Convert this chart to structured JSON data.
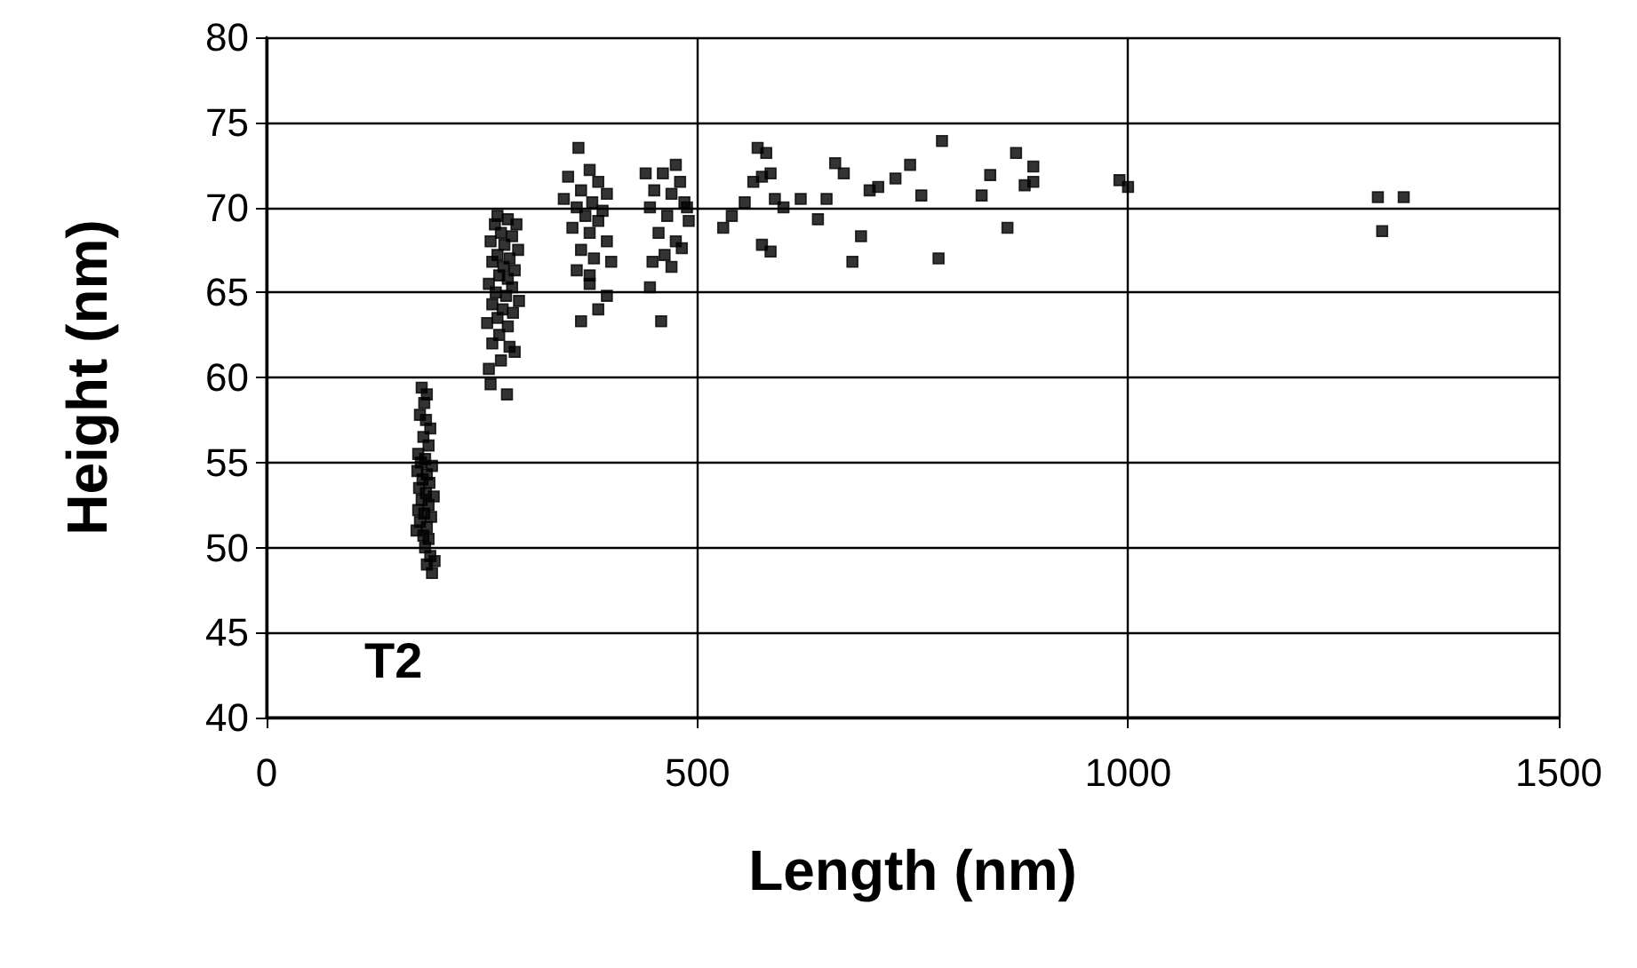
{
  "chart_data": {
    "type": "scatter",
    "xlabel": "Length (nm)",
    "ylabel": "Height (nm)",
    "annotations": [
      "T2"
    ],
    "xlim": [
      0,
      1500
    ],
    "xticks": [
      0,
      500,
      1000,
      1500
    ],
    "ylim": [
      40,
      80
    ],
    "yticks": [
      40,
      45,
      50,
      55,
      60,
      65,
      70,
      75,
      80
    ],
    "grid": true,
    "marker": "square",
    "series": [
      {
        "color": "#000000",
        "x": [
          180,
          186,
          183,
          178,
          185,
          190,
          182,
          188,
          176,
          184,
          179,
          192,
          175,
          186,
          181,
          189,
          177,
          185,
          194,
          180,
          188,
          176,
          183,
          191,
          178,
          186,
          174,
          182,
          188,
          184,
          190,
          186,
          195,
          192,
          268,
          280,
          265,
          290,
          272,
          285,
          260,
          276,
          292,
          268,
          282,
          262,
          275,
          288,
          270,
          280,
          258,
          285,
          266,
          278,
          293,
          262,
          274,
          286,
          268,
          256,
          280,
          270,
          262,
          282,
          288,
          272,
          258,
          260,
          279,
          362,
          375,
          350,
          385,
          365,
          395,
          345,
          378,
          360,
          390,
          370,
          385,
          355,
          375,
          395,
          365,
          380,
          400,
          360,
          375,
          395,
          385,
          365,
          375,
          440,
          475,
          460,
          480,
          450,
          470,
          485,
          445,
          465,
          490,
          455,
          475,
          482,
          462,
          448,
          470,
          445,
          458,
          488,
          530,
          540,
          555,
          565,
          575,
          585,
          570,
          580,
          590,
          575,
          585,
          600,
          620,
          640,
          650,
          660,
          670,
          690,
          680,
          700,
          710,
          730,
          747,
          760,
          780,
          784,
          830,
          840,
          860,
          870,
          880,
          890,
          890,
          990,
          1000,
          1290,
          1320,
          1295
        ],
        "values": [
          59.4,
          59,
          58.5,
          57.8,
          57.5,
          57,
          56.5,
          56,
          55.5,
          55.2,
          55,
          54.8,
          54.5,
          54.3,
          54,
          53.8,
          53.5,
          53.2,
          53,
          52.8,
          52.5,
          52.2,
          52,
          51.8,
          51.5,
          51.2,
          51,
          50.7,
          50.5,
          50,
          49.5,
          49,
          49.2,
          48.5,
          69.5,
          69.3,
          69,
          69,
          68.5,
          68.3,
          68,
          67.8,
          67.5,
          67.2,
          67,
          66.8,
          66.5,
          66.3,
          66,
          65.8,
          65.5,
          65.3,
          65,
          64.8,
          64.5,
          64.3,
          64,
          63.8,
          63.5,
          63.2,
          63,
          62.5,
          62,
          61.8,
          61.5,
          61,
          60.5,
          59.6,
          59,
          73.5,
          72.2,
          71.8,
          71.5,
          71,
          70.8,
          70.5,
          70.3,
          70,
          69.8,
          69.5,
          69.2,
          68.8,
          68.5,
          68,
          67.5,
          67,
          66.8,
          66.3,
          65.5,
          64.8,
          64,
          63.3,
          66,
          72,
          72.5,
          72,
          71.5,
          71,
          70.8,
          70.3,
          70,
          69.5,
          69.2,
          68.5,
          68,
          67.6,
          67.2,
          66.8,
          66.5,
          65.3,
          63.3,
          70,
          68.8,
          69.5,
          70.3,
          71.5,
          71.8,
          72,
          73.5,
          73.2,
          70.5,
          67.8,
          67.4,
          70,
          70.5,
          69.3,
          70.5,
          72.6,
          72,
          68.3,
          66.8,
          71,
          71.2,
          71.7,
          72.5,
          70.7,
          67,
          73.9,
          70.7,
          71.9,
          68.8,
          73.2,
          71.3,
          72.4,
          71.5,
          71.6,
          71.2,
          70.6,
          70.6,
          68.6
        ]
      }
    ]
  }
}
